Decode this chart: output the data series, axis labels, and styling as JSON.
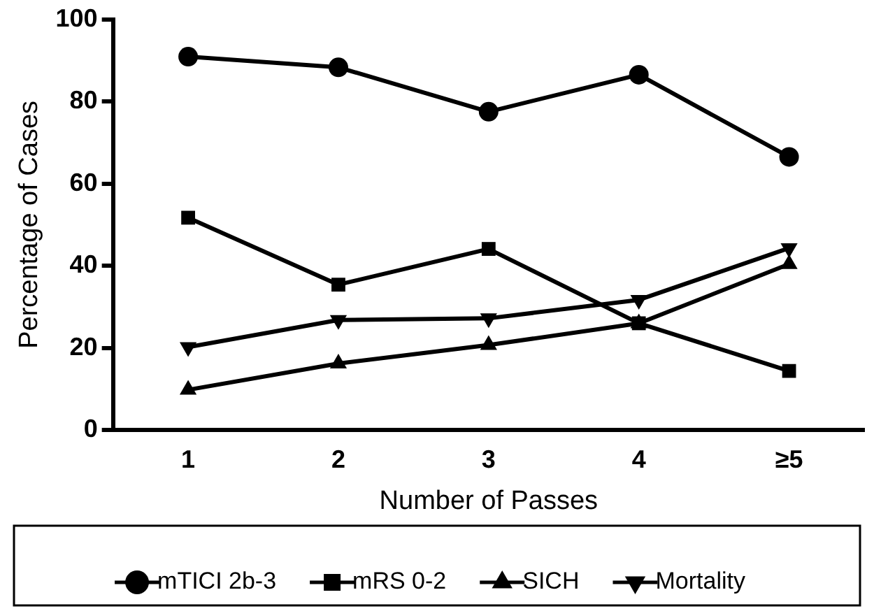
{
  "chart_data": {
    "type": "line",
    "xlabel": "Number of Passes",
    "ylabel": "Percentage of Cases",
    "categories": [
      "1",
      "2",
      "3",
      "4",
      "≥5"
    ],
    "ylim": [
      0,
      100
    ],
    "yticks": [
      0,
      20,
      40,
      60,
      80,
      100
    ],
    "grid": false,
    "legend": "bottom",
    "line_style": "solid",
    "series": [
      {
        "name": "mTICI 2b-3",
        "color": "#000000",
        "marker": "circle",
        "values": [
          90.9,
          88.3,
          77.5,
          86.5,
          66.5
        ]
      },
      {
        "name": "mRS 0-2",
        "color": "#000000",
        "marker": "square",
        "values": [
          51.7,
          35.4,
          44.1,
          26.0,
          14.4
        ]
      },
      {
        "name": "SICH",
        "color": "#000000",
        "marker": "triangle",
        "values": [
          9.8,
          16.2,
          20.7,
          26.0,
          40.4
        ]
      },
      {
        "name": "Mortality",
        "color": "#000000",
        "marker": "triangle-down",
        "values": [
          20.2,
          26.8,
          27.2,
          31.7,
          44.3
        ]
      }
    ]
  }
}
